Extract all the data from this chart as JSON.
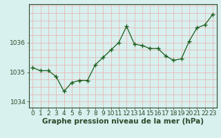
{
  "x": [
    0,
    1,
    2,
    3,
    4,
    5,
    6,
    7,
    8,
    9,
    10,
    11,
    12,
    13,
    14,
    15,
    16,
    17,
    18,
    19,
    20,
    21,
    22,
    23
  ],
  "y": [
    1035.15,
    1035.05,
    1035.05,
    1034.85,
    1034.35,
    1034.65,
    1034.72,
    1034.72,
    1035.25,
    1035.5,
    1035.75,
    1036.0,
    1036.55,
    1035.95,
    1035.9,
    1035.8,
    1035.8,
    1035.55,
    1035.4,
    1035.45,
    1036.05,
    1036.5,
    1036.6,
    1036.95
  ],
  "bg_color": "#d8f0ee",
  "line_color": "#1a5c1a",
  "marker_color": "#1a5c1a",
  "grid_color": "#e8b8b8",
  "axis_color": "#2a4a2a",
  "xlabel": "Graphe pression niveau de la mer (hPa)",
  "xlim": [
    -0.5,
    23.5
  ],
  "ylim": [
    1033.8,
    1037.3
  ],
  "yticks": [
    1034,
    1035,
    1036
  ],
  "xtick_labels": [
    "0",
    "1",
    "2",
    "3",
    "4",
    "5",
    "6",
    "7",
    "8",
    "9",
    "10",
    "11",
    "12",
    "13",
    "14",
    "15",
    "16",
    "17",
    "18",
    "19",
    "20",
    "21",
    "22",
    "23"
  ],
  "tick_fontsize": 6.5,
  "xlabel_fontsize": 7.5,
  "ylabel_fontsize": 6.5,
  "minor_ytick_interval": 0.25
}
